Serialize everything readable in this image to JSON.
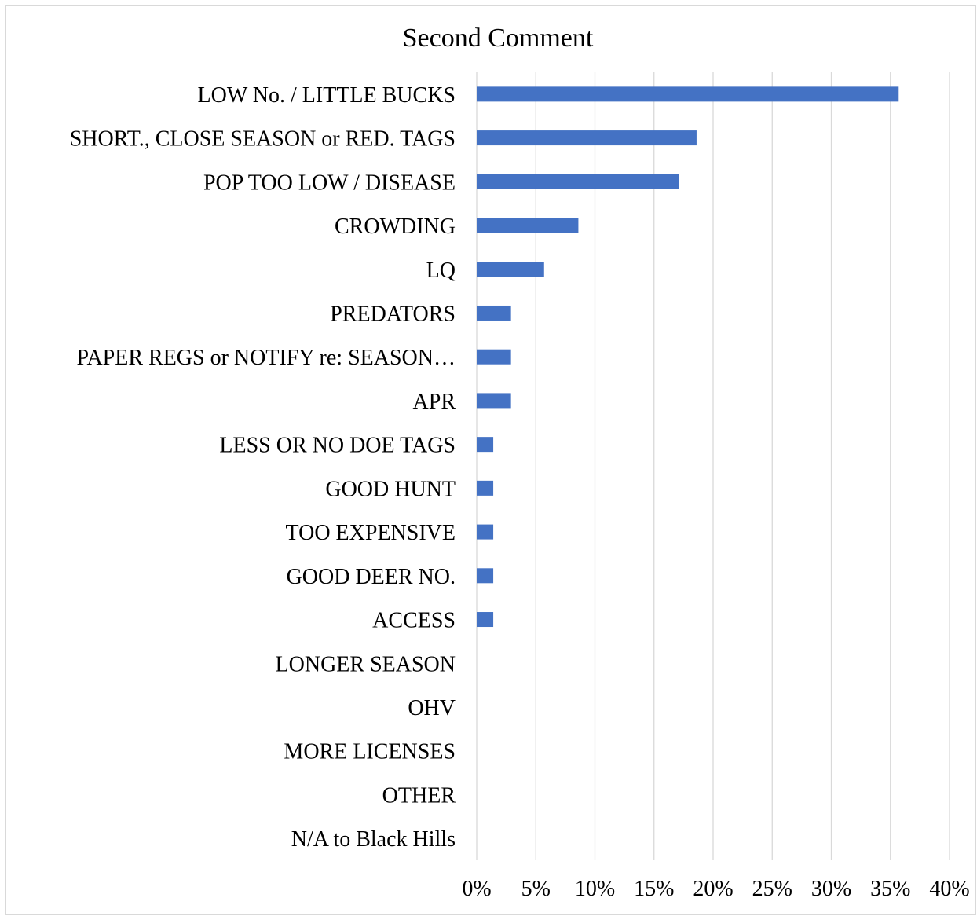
{
  "chart_data": {
    "type": "bar",
    "orientation": "horizontal",
    "title": "Second Comment",
    "categories": [
      "LOW No. / LITTLE BUCKS",
      "SHORT., CLOSE SEASON or RED. TAGS",
      "POP TOO LOW / DISEASE",
      "CROWDING",
      "LQ",
      "PREDATORS",
      "PAPER REGS or NOTIFY re: SEASON…",
      "APR",
      "LESS OR NO DOE TAGS",
      "GOOD HUNT",
      "TOO EXPENSIVE",
      "GOOD DEER NO.",
      "ACCESS",
      "LONGER SEASON",
      "OHV",
      "MORE LICENSES",
      "OTHER",
      "N/A to Black Hills"
    ],
    "values": [
      35.7,
      18.6,
      17.1,
      8.6,
      5.7,
      2.9,
      2.9,
      2.9,
      1.4,
      1.4,
      1.4,
      1.4,
      1.4,
      0,
      0,
      0,
      0,
      0
    ],
    "x_ticks": [
      "0%",
      "5%",
      "10%",
      "15%",
      "20%",
      "25%",
      "30%",
      "35%",
      "40%"
    ],
    "xlim": [
      0,
      40
    ],
    "xlabel": "",
    "ylabel": "",
    "grid": "vertical",
    "legend": "none",
    "bar_color": "#4472c4",
    "grid_color": "#d9d9d9"
  }
}
